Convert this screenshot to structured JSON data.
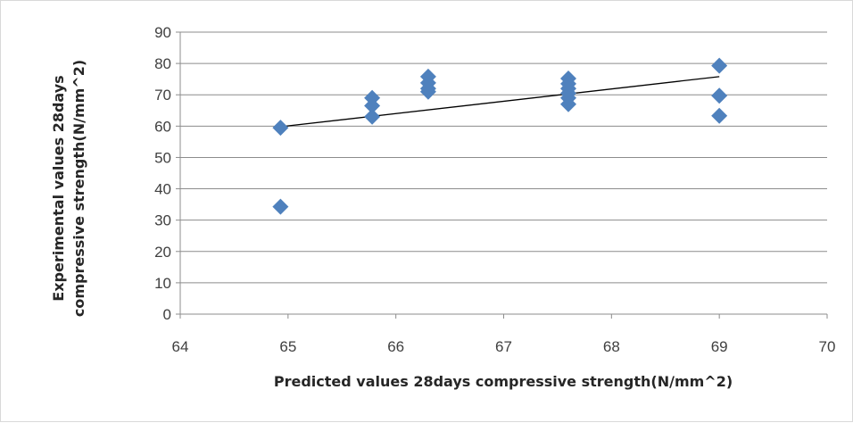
{
  "chart_data": {
    "type": "scatter",
    "title": "",
    "xlabel": "Predicted values 28days compressive strength(N/mm^2)",
    "ylabel_lines": [
      "Experimental values  28days",
      "compressive strength(N/mm^2)"
    ],
    "xlim": [
      64,
      70
    ],
    "ylim": [
      0,
      90
    ],
    "x_ticks": [
      "64",
      "65",
      "66",
      "67",
      "68",
      "69",
      "70"
    ],
    "y_ticks": [
      "0",
      "10",
      "20",
      "30",
      "40",
      "50",
      "60",
      "70",
      "80",
      "90"
    ],
    "grid": "horizontal",
    "legend": "none",
    "series": [
      {
        "marker": "diamond",
        "color": "#4f81bd",
        "points": [
          {
            "x": 64.93,
            "y": 59.5
          },
          {
            "x": 64.93,
            "y": 34.3
          },
          {
            "x": 65.78,
            "y": 69.0
          },
          {
            "x": 65.78,
            "y": 66.5
          },
          {
            "x": 65.78,
            "y": 63.0
          },
          {
            "x": 66.3,
            "y": 75.8
          },
          {
            "x": 66.3,
            "y": 73.8
          },
          {
            "x": 66.3,
            "y": 72.0
          },
          {
            "x": 66.3,
            "y": 71.0
          },
          {
            "x": 67.6,
            "y": 75.2
          },
          {
            "x": 67.6,
            "y": 73.5
          },
          {
            "x": 67.6,
            "y": 72.0
          },
          {
            "x": 67.6,
            "y": 70.5
          },
          {
            "x": 67.6,
            "y": 69.0
          },
          {
            "x": 67.6,
            "y": 67.0
          },
          {
            "x": 69.0,
            "y": 79.3
          },
          {
            "x": 69.0,
            "y": 69.7
          },
          {
            "x": 69.0,
            "y": 63.3
          }
        ]
      }
    ],
    "trendline": {
      "type": "linear",
      "color": "#000000",
      "x": [
        64.93,
        69.0
      ],
      "y": [
        59.8,
        75.8
      ]
    }
  }
}
